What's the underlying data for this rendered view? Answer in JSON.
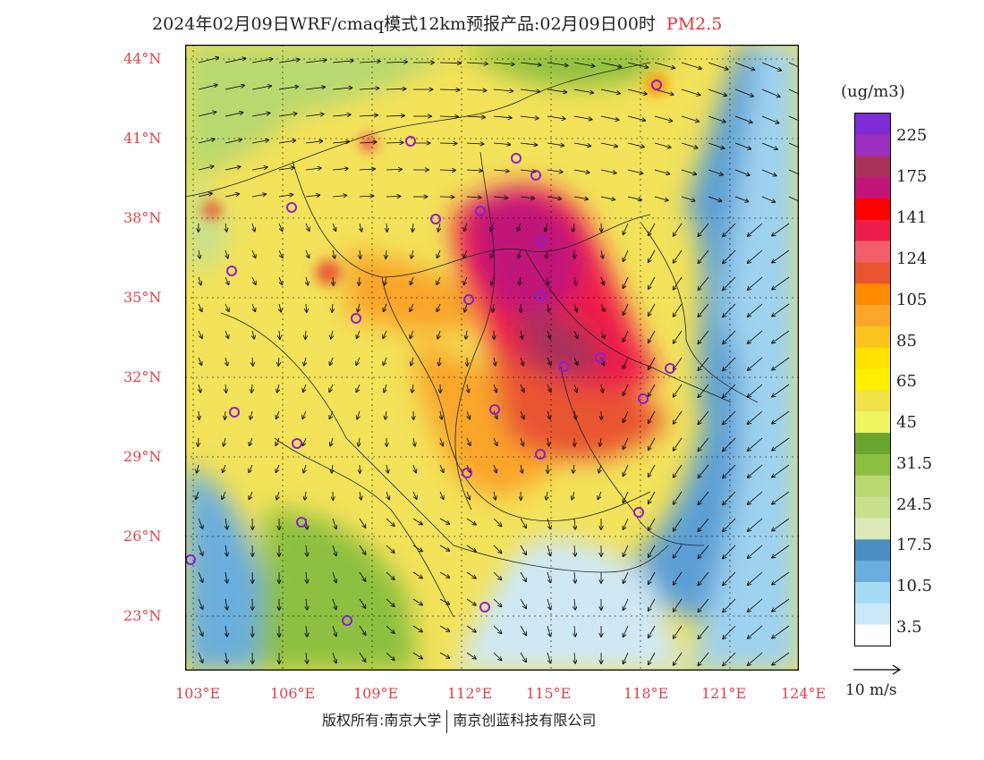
{
  "header": {
    "title": "2024年02月09日WRF/cmaq模式12km预报产品:02月09日00时",
    "pollutant": "PM2.5"
  },
  "map": {
    "lat_labels": [
      "44°N",
      "41°N",
      "38°N",
      "35°N",
      "32°N",
      "29°N",
      "26°N",
      "23°N"
    ],
    "lon_labels": [
      "103°E",
      "106°E",
      "109°E",
      "112°E",
      "115°E",
      "118°E",
      "121°E",
      "124°E"
    ],
    "lat_range": [
      21,
      44.5
    ],
    "lon_range": [
      102.8,
      124
    ]
  },
  "colorbar": {
    "unit": "(ug/m3)",
    "labels": [
      "225",
      "175",
      "141",
      "124",
      "105",
      "85",
      "65",
      "45",
      "31.5",
      "24.5",
      "17.5",
      "10.5",
      "3.5"
    ],
    "colors": [
      "#7f2bd6",
      "#9c2ec0",
      "#a8325a",
      "#c0167a",
      "#ff0000",
      "#ee1c48",
      "#f25f6a",
      "#e85530",
      "#ff8a00",
      "#f9a62a",
      "#fbc41c",
      "#ffe200",
      "#fff000",
      "#f2e24a",
      "#eef560",
      "#6aa52e",
      "#8dc040",
      "#b8d870",
      "#c8e08c",
      "#dde9b6",
      "#4a8fc4",
      "#6aaedd",
      "#a6daf3",
      "#cbe8f7",
      "#ffffff"
    ]
  },
  "wind_reference": {
    "label": "10 m/s"
  },
  "footer": {
    "copyright_a": "版权所有:南京大学",
    "copyright_b": "南京创蓝科技有限公司"
  },
  "colors": {
    "axis_label": "#e0424a",
    "station_marker": "#8b1fd6"
  }
}
